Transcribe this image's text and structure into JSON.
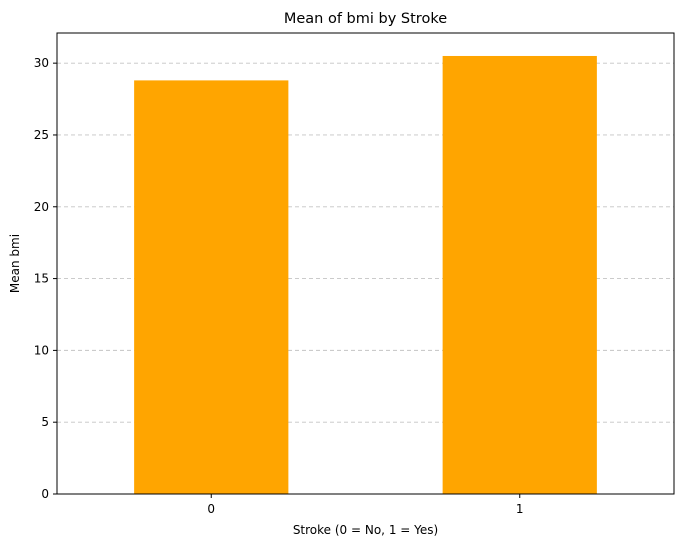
{
  "chart_data": {
    "type": "bar",
    "title": "Mean of bmi by Stroke",
    "xlabel": "Stroke (0 = No, 1 = Yes)",
    "ylabel": "Mean bmi",
    "categories": [
      "0",
      "1"
    ],
    "values": [
      28.8,
      30.5
    ],
    "ylim": [
      0,
      32.1
    ],
    "yticks": [
      0,
      5,
      10,
      15,
      20,
      25,
      30
    ],
    "grid": "y",
    "bar_color": "#ffa500"
  }
}
